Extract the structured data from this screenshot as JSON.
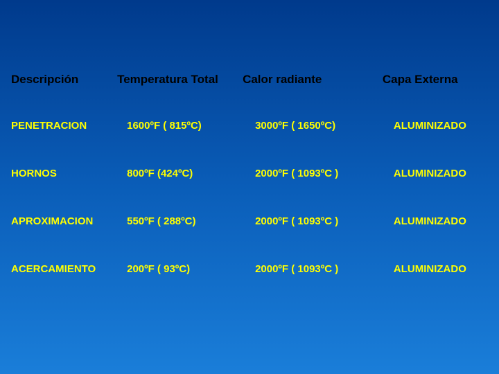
{
  "table": {
    "columns": [
      "Descripción",
      "Temperatura Total",
      "Calor radiante",
      "Capa Externa"
    ],
    "rows": [
      [
        "PENETRACION",
        "1600ºF ( 815ºC)",
        "3000ºF ( 1650ºC)",
        "ALUMINIZADO"
      ],
      [
        "HORNOS",
        "800ºF (424ºC)",
        "2000ºF ( 1093ºC )",
        "ALUMINIZADO"
      ],
      [
        "APROXIMACION",
        "550ºF ( 288ºC)",
        "2000ºF ( 1093ºC )",
        "ALUMINIZADO"
      ],
      [
        "ACERCAMIENTO",
        "200ºF ( 93ºC)",
        "2000ºF ( 1093ºC )",
        "ALUMINIZADO"
      ]
    ],
    "header_color": "#000000",
    "cell_color": "#ffff00",
    "header_fontsize": 17,
    "cell_fontsize": 15,
    "background_gradient": [
      "#003a8c",
      "#0a5db8",
      "#1a7ed9"
    ]
  }
}
